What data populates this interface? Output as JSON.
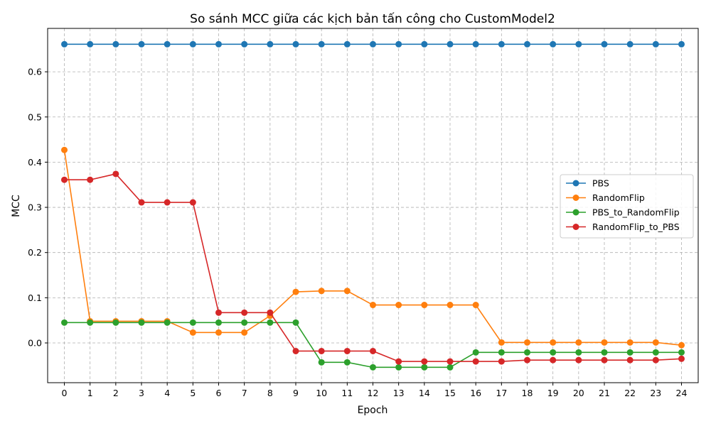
{
  "chart_data": {
    "type": "line",
    "title": "So sánh MCC giữa các kịch bản tấn công cho CustomModel2",
    "xlabel": "Epoch",
    "ylabel": "MCC",
    "x": [
      0,
      1,
      2,
      3,
      4,
      5,
      6,
      7,
      8,
      9,
      10,
      11,
      12,
      13,
      14,
      15,
      16,
      17,
      18,
      19,
      20,
      21,
      22,
      23,
      24
    ],
    "x_ticks": [
      "0",
      "1",
      "2",
      "3",
      "4",
      "5",
      "6",
      "7",
      "8",
      "9",
      "10",
      "11",
      "12",
      "13",
      "14",
      "15",
      "16",
      "17",
      "18",
      "19",
      "20",
      "21",
      "22",
      "23",
      "24"
    ],
    "y_ticks": [
      "0.0",
      "0.1",
      "0.2",
      "0.3",
      "0.4",
      "0.5",
      "0.6"
    ],
    "y_tick_values": [
      0.0,
      0.1,
      0.2,
      0.3,
      0.4,
      0.5,
      0.6
    ],
    "xlim": [
      -0.65,
      24.65
    ],
    "ylim": [
      -0.088,
      0.696
    ],
    "grid": true,
    "legend_position": "center-right",
    "series": [
      {
        "name": "PBS",
        "color": "#1f77b4",
        "values": [
          0.661,
          0.661,
          0.661,
          0.661,
          0.661,
          0.661,
          0.661,
          0.661,
          0.661,
          0.661,
          0.661,
          0.661,
          0.661,
          0.661,
          0.661,
          0.661,
          0.661,
          0.661,
          0.661,
          0.661,
          0.661,
          0.661,
          0.661,
          0.661,
          0.661
        ]
      },
      {
        "name": "RandomFlip",
        "color": "#ff7f0e",
        "values": [
          0.427,
          0.048,
          0.048,
          0.048,
          0.048,
          0.023,
          0.023,
          0.023,
          0.06,
          0.113,
          0.115,
          0.115,
          0.084,
          0.084,
          0.084,
          0.084,
          0.084,
          0.001,
          0.001,
          0.001,
          0.001,
          0.001,
          0.001,
          0.001,
          -0.005
        ]
      },
      {
        "name": "PBS_to_RandomFlip",
        "color": "#2ca02c",
        "values": [
          0.045,
          0.045,
          0.045,
          0.045,
          0.045,
          0.045,
          0.045,
          0.045,
          0.045,
          0.045,
          -0.043,
          -0.043,
          -0.054,
          -0.054,
          -0.054,
          -0.054,
          -0.021,
          -0.021,
          -0.021,
          -0.021,
          -0.021,
          -0.021,
          -0.021,
          -0.021,
          -0.021
        ]
      },
      {
        "name": "RandomFlip_to_PBS",
        "color": "#d62728",
        "values": [
          0.361,
          0.361,
          0.374,
          0.311,
          0.311,
          0.311,
          0.067,
          0.067,
          0.067,
          -0.018,
          -0.018,
          -0.018,
          -0.018,
          -0.041,
          -0.041,
          -0.041,
          -0.041,
          -0.041,
          -0.038,
          -0.038,
          -0.038,
          -0.038,
          -0.038,
          -0.038,
          -0.035
        ]
      }
    ]
  }
}
